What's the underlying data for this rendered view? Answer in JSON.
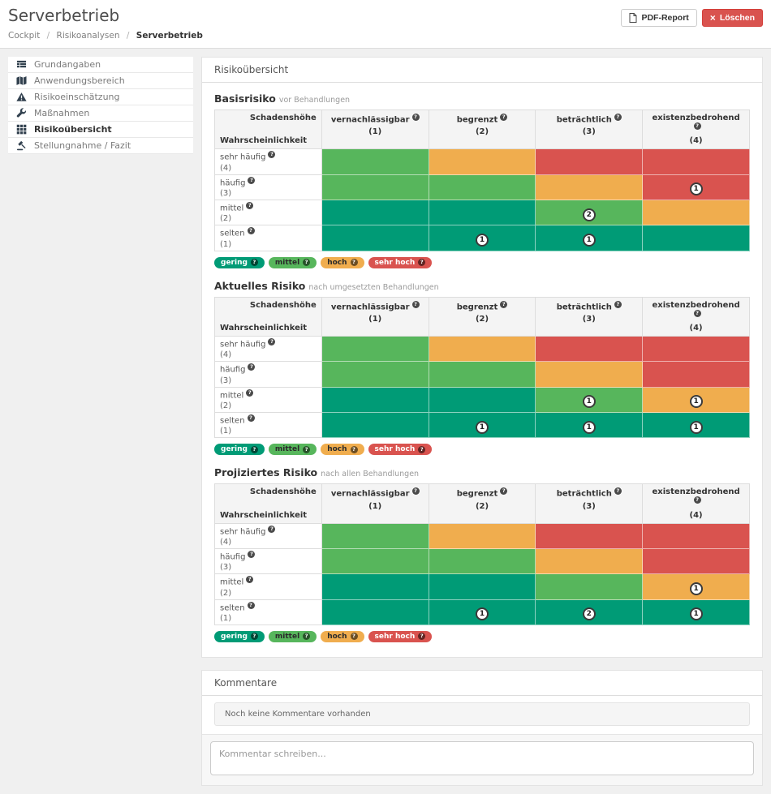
{
  "header": {
    "title": "Serverbetrieb"
  },
  "breadcrumb": {
    "separator": "/",
    "items": [
      {
        "label": "Cockpit",
        "current": false
      },
      {
        "label": "Risikoanalysen",
        "current": false
      },
      {
        "label": "Serverbetrieb",
        "current": true
      }
    ]
  },
  "toolbar": {
    "pdf_report_label": "PDF-Report",
    "delete_label": "Löschen",
    "delete_icon_glyph": "×"
  },
  "sidebar": {
    "items": [
      {
        "icon": "list-table-icon",
        "label": "Grundangaben",
        "active": false
      },
      {
        "icon": "map-icon",
        "label": "Anwendungsbereich",
        "active": false
      },
      {
        "icon": "warning-triangle-icon",
        "label": "Risikoeinschätzung",
        "active": false
      },
      {
        "icon": "wrench-icon",
        "label": "Maßnahmen",
        "active": false
      },
      {
        "icon": "grid-icon",
        "label": "Risikoübersicht",
        "active": true
      },
      {
        "icon": "gavel-icon",
        "label": "Stellungnahme / Fazit",
        "active": false
      }
    ]
  },
  "panel": {
    "title": "Risikoübersicht"
  },
  "help_icon_glyph": "?",
  "colors": {
    "green": "#57b65c",
    "teal": "#009b76",
    "orange": "#f0ad4e",
    "red": "#d9534f"
  },
  "matrix_template": {
    "corner": {
      "columns_axis": "Schadenshöhe",
      "rows_axis": "Wahrscheinlichkeit"
    },
    "columns": [
      {
        "label": "vernachlässigbar",
        "weight": "(1)"
      },
      {
        "label": "begrenzt",
        "weight": "(2)"
      },
      {
        "label": "beträchtlich",
        "weight": "(3)"
      },
      {
        "label": "existenzbedrohend",
        "weight": "(4)"
      }
    ],
    "rows": [
      {
        "label": "sehr häufig",
        "weight": "(4)"
      },
      {
        "label": "häufig",
        "weight": "(3)"
      },
      {
        "label": "mittel",
        "weight": "(2)"
      },
      {
        "label": "selten",
        "weight": "(1)"
      }
    ],
    "cell_colors": [
      [
        "green",
        "orange",
        "red",
        "red"
      ],
      [
        "green",
        "green",
        "orange",
        "red"
      ],
      [
        "teal",
        "teal",
        "green",
        "orange"
      ],
      [
        "teal",
        "teal",
        "teal",
        "teal"
      ]
    ]
  },
  "matrices": [
    {
      "title": "Basisrisiko",
      "subtitle": "vor Behandlungen",
      "badges": [
        [
          null,
          null,
          null,
          null
        ],
        [
          null,
          null,
          null,
          "1"
        ],
        [
          null,
          null,
          "2",
          null
        ],
        [
          null,
          "1",
          "1",
          null
        ]
      ]
    },
    {
      "title": "Aktuelles Risiko",
      "subtitle": "nach umgesetzten Behandlungen",
      "badges": [
        [
          null,
          null,
          null,
          null
        ],
        [
          null,
          null,
          null,
          null
        ],
        [
          null,
          null,
          "1",
          "1"
        ],
        [
          null,
          "1",
          "1",
          "1"
        ]
      ]
    },
    {
      "title": "Projiziertes Risiko",
      "subtitle": "nach allen Behandlungen",
      "badges": [
        [
          null,
          null,
          null,
          null
        ],
        [
          null,
          null,
          null,
          null
        ],
        [
          null,
          null,
          null,
          "1"
        ],
        [
          null,
          "1",
          "2",
          "1"
        ]
      ]
    }
  ],
  "legend": [
    {
      "label": "gering",
      "color": "teal",
      "text_color": "#ffffff"
    },
    {
      "label": "mittel",
      "color": "green",
      "text_color": "#2b2b2b"
    },
    {
      "label": "hoch",
      "color": "orange",
      "text_color": "#2b2b2b"
    },
    {
      "label": "sehr hoch",
      "color": "red",
      "text_color": "#ffffff"
    }
  ],
  "comments": {
    "title": "Kommentare",
    "empty_message": "Noch keine Kommentare vorhanden",
    "input_placeholder": "Kommentar schreiben..."
  }
}
